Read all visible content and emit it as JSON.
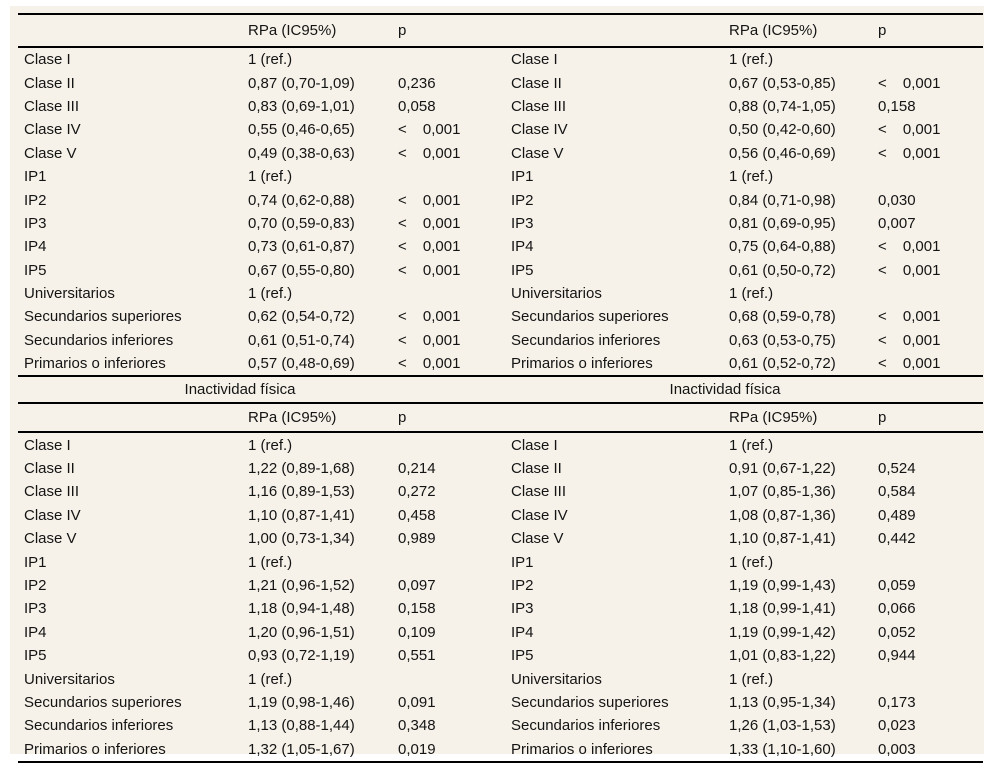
{
  "colors": {
    "page_background": "#ffffff",
    "panel_background": "#f6f2e9",
    "rule_color": "#000000",
    "text_color": "#141414"
  },
  "table": {
    "header": {
      "rpa": "RPa (IC95%)",
      "p": "p"
    },
    "titles": {
      "left": "Inactividad física",
      "right": "Inactividad física"
    },
    "section1": {
      "left": [
        {
          "label": "Clase I",
          "rpa": "1 (ref.)",
          "p": ""
        },
        {
          "label": "Clase II",
          "rpa": "0,87 (0,70-1,09)",
          "p": "0,236"
        },
        {
          "label": "Clase III",
          "rpa": "0,83 (0,69-1,01)",
          "p": "0,058"
        },
        {
          "label": "Clase IV",
          "rpa": "0,55 (0,46-0,65)",
          "p": "< 0,001"
        },
        {
          "label": "Clase V",
          "rpa": "0,49 (0,38-0,63)",
          "p": "< 0,001"
        },
        {
          "label": "IP1",
          "rpa": "1 (ref.)",
          "p": ""
        },
        {
          "label": "IP2",
          "rpa": "0,74 (0,62-0,88)",
          "p": "< 0,001"
        },
        {
          "label": "IP3",
          "rpa": "0,70 (0,59-0,83)",
          "p": "< 0,001"
        },
        {
          "label": "IP4",
          "rpa": "0,73 (0,61-0,87)",
          "p": "< 0,001"
        },
        {
          "label": "IP5",
          "rpa": "0,67 (0,55-0,80)",
          "p": "< 0,001"
        },
        {
          "label": "Universitarios",
          "rpa": "1 (ref.)",
          "p": ""
        },
        {
          "label": "Secundarios superiores",
          "rpa": "0,62 (0,54-0,72)",
          "p": "< 0,001"
        },
        {
          "label": "Secundarios inferiores",
          "rpa": "0,61 (0,51-0,74)",
          "p": "< 0,001"
        },
        {
          "label": "Primarios o inferiores",
          "rpa": "0,57 (0,48-0,69)",
          "p": "< 0,001"
        }
      ],
      "right": [
        {
          "label": "Clase I",
          "rpa": "1 (ref.)",
          "p": ""
        },
        {
          "label": "Clase II",
          "rpa": "0,67 (0,53-0,85)",
          "p": "< 0,001"
        },
        {
          "label": "Clase III",
          "rpa": "0,88 (0,74-1,05)",
          "p": "0,158"
        },
        {
          "label": "Clase IV",
          "rpa": "0,50 (0,42-0,60)",
          "p": "< 0,001"
        },
        {
          "label": "Clase V",
          "rpa": "0,56 (0,46-0,69)",
          "p": "< 0,001"
        },
        {
          "label": "IP1",
          "rpa": "1 (ref.)",
          "p": ""
        },
        {
          "label": "IP2",
          "rpa": "0,84 (0,71-0,98)",
          "p": "0,030"
        },
        {
          "label": "IP3",
          "rpa": "0,81 (0,69-0,95)",
          "p": "0,007"
        },
        {
          "label": "IP4",
          "rpa": "0,75 (0,64-0,88)",
          "p": "< 0,001"
        },
        {
          "label": "IP5",
          "rpa": "0,61 (0,50-0,72)",
          "p": "< 0,001"
        },
        {
          "label": "Universitarios",
          "rpa": "1 (ref.)",
          "p": ""
        },
        {
          "label": "Secundarios superiores",
          "rpa": "0,68 (0,59-0,78)",
          "p": "< 0,001"
        },
        {
          "label": "Secundarios inferiores",
          "rpa": "0,63 (0,53-0,75)",
          "p": "< 0,001"
        },
        {
          "label": "Primarios o inferiores",
          "rpa": "0,61 (0,52-0,72)",
          "p": "< 0,001"
        }
      ]
    },
    "section2": {
      "left": [
        {
          "label": "Clase I",
          "rpa": "1 (ref.)",
          "p": ""
        },
        {
          "label": "Clase II",
          "rpa": "1,22 (0,89-1,68)",
          "p": "0,214"
        },
        {
          "label": "Clase III",
          "rpa": "1,16 (0,89-1,53)",
          "p": "0,272"
        },
        {
          "label": "Clase IV",
          "rpa": "1,10 (0,87-1,41)",
          "p": "0,458"
        },
        {
          "label": "Clase V",
          "rpa": "1,00 (0,73-1,34)",
          "p": "0,989"
        },
        {
          "label": "IP1",
          "rpa": "1 (ref.)",
          "p": ""
        },
        {
          "label": "IP2",
          "rpa": "1,21 (0,96-1,52)",
          "p": "0,097"
        },
        {
          "label": "IP3",
          "rpa": "1,18 (0,94-1,48)",
          "p": "0,158"
        },
        {
          "label": "IP4",
          "rpa": "1,20 (0,96-1,51)",
          "p": "0,109"
        },
        {
          "label": "IP5",
          "rpa": "0,93 (0,72-1,19)",
          "p": "0,551"
        },
        {
          "label": "Universitarios",
          "rpa": "1 (ref.)",
          "p": ""
        },
        {
          "label": "Secundarios superiores",
          "rpa": "1,19 (0,98-1,46)",
          "p": "0,091"
        },
        {
          "label": "Secundarios inferiores",
          "rpa": "1,13 (0,88-1,44)",
          "p": "0,348"
        },
        {
          "label": "Primarios o inferiores",
          "rpa": "1,32 (1,05-1,67)",
          "p": "0,019"
        }
      ],
      "right": [
        {
          "label": "Clase I",
          "rpa": "1 (ref.)",
          "p": ""
        },
        {
          "label": "Clase II",
          "rpa": "0,91 (0,67-1,22)",
          "p": "0,524"
        },
        {
          "label": "Clase III",
          "rpa": "1,07 (0,85-1,36)",
          "p": "0,584"
        },
        {
          "label": "Clase IV",
          "rpa": "1,08 (0,87-1,36)",
          "p": "0,489"
        },
        {
          "label": "Clase V",
          "rpa": "1,10 (0,87-1,41)",
          "p": "0,442"
        },
        {
          "label": "IP1",
          "rpa": "1 (ref.)",
          "p": ""
        },
        {
          "label": "IP2",
          "rpa": "1,19 (0,99-1,43)",
          "p": "0,059"
        },
        {
          "label": "IP3",
          "rpa": "1,18 (0,99-1,41)",
          "p": "0,066"
        },
        {
          "label": "IP4",
          "rpa": "1,19 (0,99-1,42)",
          "p": "0,052"
        },
        {
          "label": "IP5",
          "rpa": "1,01 (0,83-1,22)",
          "p": "0,944"
        },
        {
          "label": "Universitarios",
          "rpa": "1 (ref.)",
          "p": ""
        },
        {
          "label": "Secundarios superiores",
          "rpa": "1,13 (0,95-1,34)",
          "p": "0,173"
        },
        {
          "label": "Secundarios inferiores",
          "rpa": "1,26 (1,03-1,53)",
          "p": "0,023"
        },
        {
          "label": "Primarios o inferiores",
          "rpa": "1,33 (1,10-1,60)",
          "p": "0,003"
        }
      ]
    }
  }
}
